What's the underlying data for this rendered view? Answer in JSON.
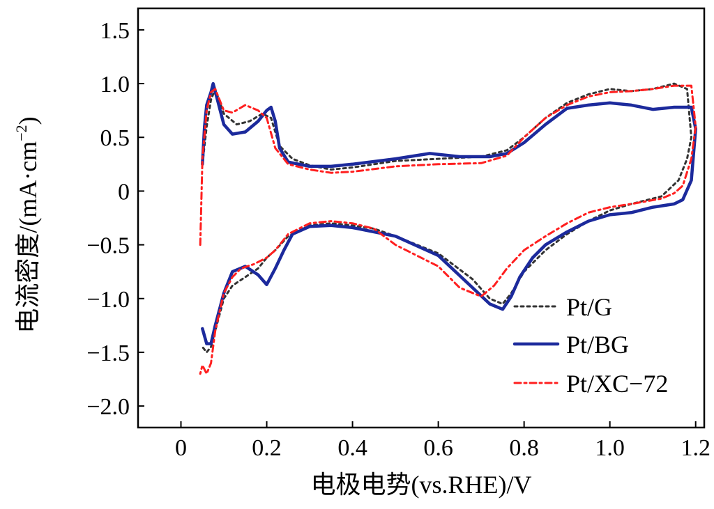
{
  "chart_data": {
    "type": "line",
    "xlabel": "电极电势(vs.RHE)/V",
    "ylabel": "电流密度/(mA·cm",
    "ylabel_sup": "−2",
    "ylabel_close": ")",
    "xlim": [
      -0.1,
      1.22
    ],
    "ylim": [
      -2.2,
      1.7
    ],
    "x_ticks": [
      0,
      0.2,
      0.4,
      0.6,
      0.8,
      1.0,
      1.2
    ],
    "x_tick_labels": [
      "0",
      "0.2",
      "0.4",
      "0.6",
      "0.8",
      "1.0",
      "1.2"
    ],
    "y_ticks": [
      1.5,
      1.0,
      0.5,
      0,
      -0.5,
      -1.0,
      -1.5,
      -2.0
    ],
    "y_tick_labels": [
      "1.5",
      "1.0",
      "0.5",
      "0",
      "−0.5",
      "−1.0",
      "−1.5",
      "−2.0"
    ],
    "grid": false,
    "legend_position": "bottom-right",
    "series": [
      {
        "name": "Pt/G",
        "color": "#333333",
        "style": "dotted",
        "x": [
          0.05,
          0.06,
          0.07,
          0.08,
          0.1,
          0.13,
          0.16,
          0.19,
          0.21,
          0.23,
          0.26,
          0.3,
          0.35,
          0.4,
          0.5,
          0.6,
          0.7,
          0.76,
          0.8,
          0.85,
          0.9,
          0.95,
          1.0,
          1.05,
          1.1,
          1.15,
          1.18,
          1.19,
          1.18,
          1.16,
          1.12,
          1.05,
          1.0,
          0.95,
          0.9,
          0.85,
          0.8,
          0.77,
          0.75,
          0.72,
          0.68,
          0.6,
          0.5,
          0.45,
          0.4,
          0.35,
          0.3,
          0.25,
          0.22,
          0.2,
          0.18,
          0.15,
          0.12,
          0.1,
          0.08,
          0.07,
          0.06,
          0.05
        ],
        "y": [
          0.25,
          0.6,
          0.85,
          0.95,
          0.72,
          0.62,
          0.65,
          0.72,
          0.68,
          0.42,
          0.3,
          0.24,
          0.2,
          0.22,
          0.28,
          0.3,
          0.32,
          0.38,
          0.5,
          0.68,
          0.82,
          0.9,
          0.95,
          0.93,
          0.95,
          1.0,
          0.95,
          0.5,
          0.3,
          0.1,
          -0.05,
          -0.12,
          -0.18,
          -0.28,
          -0.4,
          -0.55,
          -0.75,
          -0.95,
          -1.05,
          -1.0,
          -0.82,
          -0.58,
          -0.42,
          -0.35,
          -0.32,
          -0.3,
          -0.32,
          -0.42,
          -0.55,
          -0.62,
          -0.72,
          -0.8,
          -0.88,
          -1.0,
          -1.3,
          -1.45,
          -1.5,
          -1.45
        ]
      },
      {
        "name": "Pt/BG",
        "color": "#1c2a9c",
        "style": "solid",
        "x": [
          0.05,
          0.055,
          0.06,
          0.07,
          0.075,
          0.085,
          0.1,
          0.12,
          0.15,
          0.18,
          0.2,
          0.21,
          0.22,
          0.23,
          0.25,
          0.3,
          0.35,
          0.4,
          0.5,
          0.58,
          0.65,
          0.72,
          0.76,
          0.8,
          0.85,
          0.9,
          0.95,
          1.0,
          1.05,
          1.1,
          1.15,
          1.19,
          1.2,
          1.19,
          1.17,
          1.15,
          1.1,
          1.05,
          1.0,
          0.95,
          0.9,
          0.85,
          0.82,
          0.79,
          0.77,
          0.75,
          0.72,
          0.68,
          0.6,
          0.5,
          0.4,
          0.35,
          0.3,
          0.26,
          0.24,
          0.22,
          0.2,
          0.18,
          0.15,
          0.12,
          0.1,
          0.08,
          0.07,
          0.06,
          0.05
        ],
        "y": [
          0.25,
          0.6,
          0.8,
          0.92,
          1.0,
          0.85,
          0.62,
          0.53,
          0.55,
          0.65,
          0.75,
          0.78,
          0.65,
          0.4,
          0.27,
          0.23,
          0.23,
          0.25,
          0.3,
          0.35,
          0.32,
          0.32,
          0.35,
          0.45,
          0.62,
          0.77,
          0.8,
          0.82,
          0.8,
          0.76,
          0.78,
          0.78,
          0.58,
          0.1,
          -0.08,
          -0.12,
          -0.15,
          -0.2,
          -0.22,
          -0.28,
          -0.38,
          -0.5,
          -0.62,
          -0.8,
          -0.98,
          -1.1,
          -1.05,
          -0.9,
          -0.6,
          -0.42,
          -0.34,
          -0.32,
          -0.33,
          -0.4,
          -0.55,
          -0.72,
          -0.87,
          -0.78,
          -0.7,
          -0.75,
          -0.95,
          -1.25,
          -1.42,
          -1.42,
          -1.28
        ],
        "line_width": 4.5
      },
      {
        "name": "Pt/XC−72",
        "color": "#ff1f1f",
        "style": "dashdot",
        "x": [
          0.045,
          0.05,
          0.06,
          0.07,
          0.08,
          0.1,
          0.12,
          0.15,
          0.18,
          0.2,
          0.22,
          0.25,
          0.3,
          0.35,
          0.4,
          0.5,
          0.6,
          0.7,
          0.76,
          0.8,
          0.85,
          0.9,
          0.95,
          1.0,
          1.05,
          1.1,
          1.15,
          1.19,
          1.2,
          1.19,
          1.17,
          1.15,
          1.12,
          1.05,
          1.0,
          0.95,
          0.9,
          0.85,
          0.8,
          0.76,
          0.73,
          0.7,
          0.65,
          0.6,
          0.5,
          0.45,
          0.4,
          0.35,
          0.3,
          0.25,
          0.22,
          0.2,
          0.17,
          0.14,
          0.12,
          0.1,
          0.08,
          0.07,
          0.06,
          0.05,
          0.045
        ],
        "y": [
          -0.5,
          0.3,
          0.75,
          0.92,
          0.95,
          0.75,
          0.73,
          0.8,
          0.75,
          0.68,
          0.4,
          0.25,
          0.2,
          0.17,
          0.18,
          0.23,
          0.25,
          0.26,
          0.33,
          0.5,
          0.68,
          0.8,
          0.88,
          0.92,
          0.93,
          0.95,
          0.98,
          0.98,
          0.6,
          0.3,
          0.05,
          -0.02,
          -0.07,
          -0.12,
          -0.15,
          -0.2,
          -0.3,
          -0.42,
          -0.55,
          -0.72,
          -0.88,
          -0.98,
          -0.9,
          -0.7,
          -0.5,
          -0.35,
          -0.3,
          -0.28,
          -0.3,
          -0.4,
          -0.55,
          -0.62,
          -0.68,
          -0.72,
          -0.8,
          -0.95,
          -1.3,
          -1.6,
          -1.7,
          -1.62,
          -1.7
        ]
      }
    ]
  }
}
